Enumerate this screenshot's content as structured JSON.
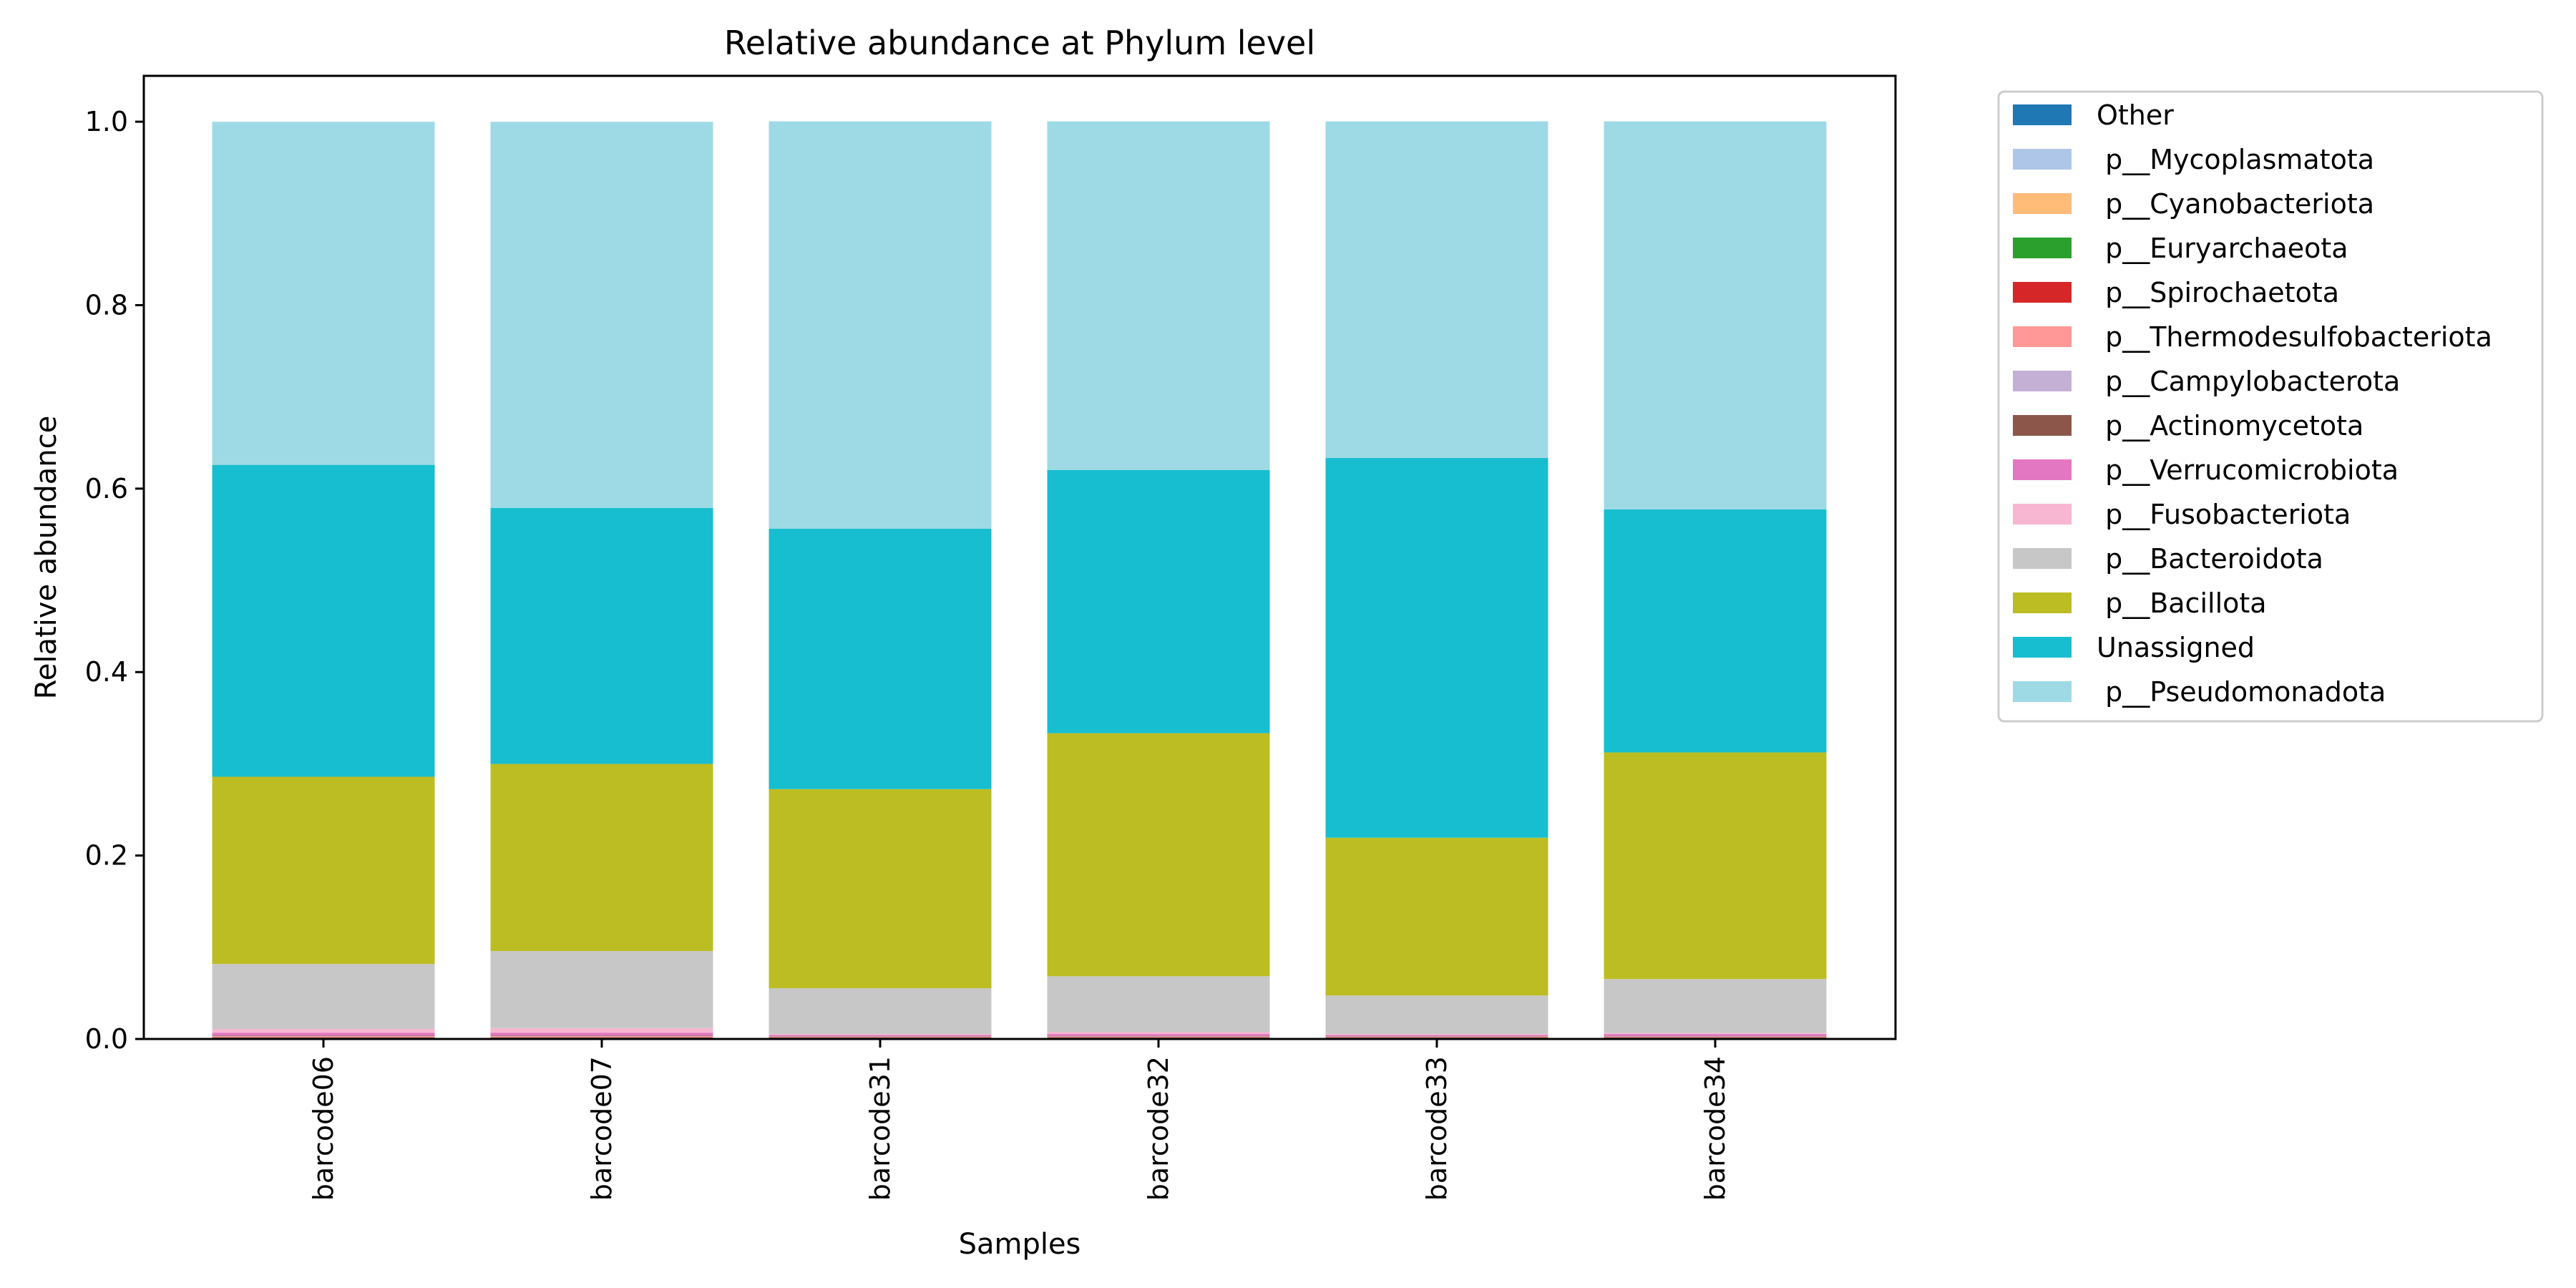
{
  "chart_data": {
    "type": "bar",
    "stacked": true,
    "title": "Relative abundance at Phylum level",
    "xlabel": "Samples",
    "ylabel": "Relative abundance",
    "ylim": [
      0,
      1.05
    ],
    "yticks": [
      "0.0",
      "0.2",
      "0.4",
      "0.6",
      "0.8",
      "1.0"
    ],
    "categories": [
      "barcode06",
      "barcode07",
      "barcode31",
      "barcode32",
      "barcode33",
      "barcode34"
    ],
    "legend_position": "outside-top-right",
    "legend_order": [
      "Other",
      " p__Mycoplasmatota",
      " p__Cyanobacteriota",
      " p__Euryarchaeota",
      " p__Spirochaetota",
      " p__Thermodesulfobacteriota",
      " p__Campylobacterota",
      " p__Actinomycetota",
      " p__Verrucomicrobiota",
      " p__Fusobacteriota",
      " p__Bacteroidota",
      " p__Bacillota",
      "Unassigned",
      " p__Pseudomonadota"
    ],
    "series": [
      {
        "name": "Other",
        "color": "#1f77b4",
        "values": [
          0.0005,
          0.0005,
          0.0005,
          0.0005,
          0.0005,
          0.0005
        ]
      },
      {
        "name": " p__Mycoplasmatota",
        "color": "#aec7e8",
        "values": [
          0.0003,
          0.0003,
          0.0003,
          0.0003,
          0.0003,
          0.0003
        ]
      },
      {
        "name": " p__Cyanobacteriota",
        "color": "#ffbb78",
        "values": [
          0.0003,
          0.0003,
          0.0003,
          0.0003,
          0.0003,
          0.0003
        ]
      },
      {
        "name": " p__Euryarchaeota",
        "color": "#2ca02c",
        "values": [
          0.0003,
          0.0003,
          0.0003,
          0.0003,
          0.0003,
          0.0003
        ]
      },
      {
        "name": " p__Spirochaetota",
        "color": "#d62728",
        "values": [
          0.0005,
          0.0005,
          0.0005,
          0.0005,
          0.0005,
          0.0005
        ]
      },
      {
        "name": " p__Thermodesulfobacteriota",
        "color": "#ff9896",
        "values": [
          0.001,
          0.001,
          0.0005,
          0.0005,
          0.0005,
          0.0005
        ]
      },
      {
        "name": " p__Campylobacterota",
        "color": "#c5b0d5",
        "values": [
          0.0005,
          0.0005,
          0.0005,
          0.0005,
          0.0005,
          0.0005
        ]
      },
      {
        "name": " p__Actinomycetota",
        "color": "#8c564b",
        "values": [
          0.0005,
          0.0005,
          0.0005,
          0.0005,
          0.0005,
          0.0005
        ]
      },
      {
        "name": " p__Verrucomicrobiota",
        "color": "#e377c2",
        "values": [
          0.003,
          0.003,
          0.001,
          0.002,
          0.001,
          0.002
        ]
      },
      {
        "name": " p__Fusobacteriota",
        "color": "#f7b6d2",
        "values": [
          0.004,
          0.005,
          0.001,
          0.002,
          0.001,
          0.001
        ]
      },
      {
        "name": " p__Bacteroidota",
        "color": "#c7c7c7",
        "values": [
          0.071,
          0.084,
          0.05,
          0.061,
          0.042,
          0.059
        ]
      },
      {
        "name": " p__Bacillota",
        "color": "#bcbd22",
        "values": [
          0.204,
          0.204,
          0.217,
          0.265,
          0.172,
          0.247
        ]
      },
      {
        "name": "Unassigned",
        "color": "#17becf",
        "values": [
          0.34,
          0.279,
          0.284,
          0.287,
          0.414,
          0.265
        ]
      },
      {
        "name": " p__Pseudomonadota",
        "color": "#9edae5",
        "values": [
          0.374,
          0.421,
          0.444,
          0.38,
          0.367,
          0.423
        ]
      }
    ]
  }
}
